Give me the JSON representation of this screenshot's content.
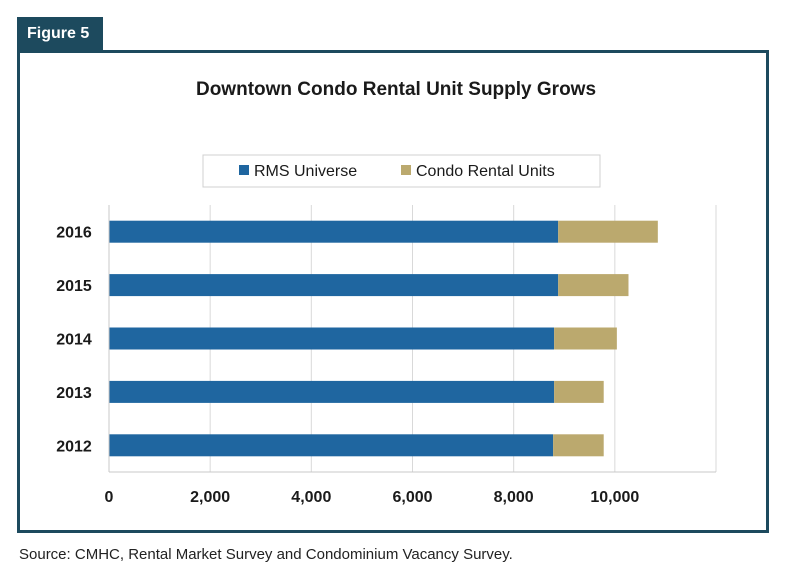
{
  "figure_label": "Figure 5",
  "source": "Source: CMHC, Rental Market Survey and Condominium Vacancy Survey.",
  "colors": {
    "frame": "#1d4a5e",
    "rms": "#1f66a0",
    "condo": "#bba96e",
    "grid": "#d9d9d9"
  },
  "chart_data": {
    "type": "bar",
    "orientation": "horizontal",
    "stacked": true,
    "title": "Downtown Condo Rental Unit Supply Grows",
    "categories": [
      "2016",
      "2015",
      "2014",
      "2013",
      "2012"
    ],
    "series": [
      {
        "name": "RMS Universe",
        "values": [
          8880,
          8880,
          8800,
          8800,
          8780
        ]
      },
      {
        "name": "Condo Rental Units",
        "values": [
          1970,
          1390,
          1240,
          980,
          1000
        ]
      }
    ],
    "xlim": [
      0,
      12000
    ],
    "xticks": [
      0,
      2000,
      4000,
      6000,
      8000,
      10000
    ],
    "xtick_labels": [
      "0",
      "2,000",
      "4,000",
      "6,000",
      "8,000",
      "10,000"
    ],
    "grid": true,
    "legend_position": "top"
  }
}
